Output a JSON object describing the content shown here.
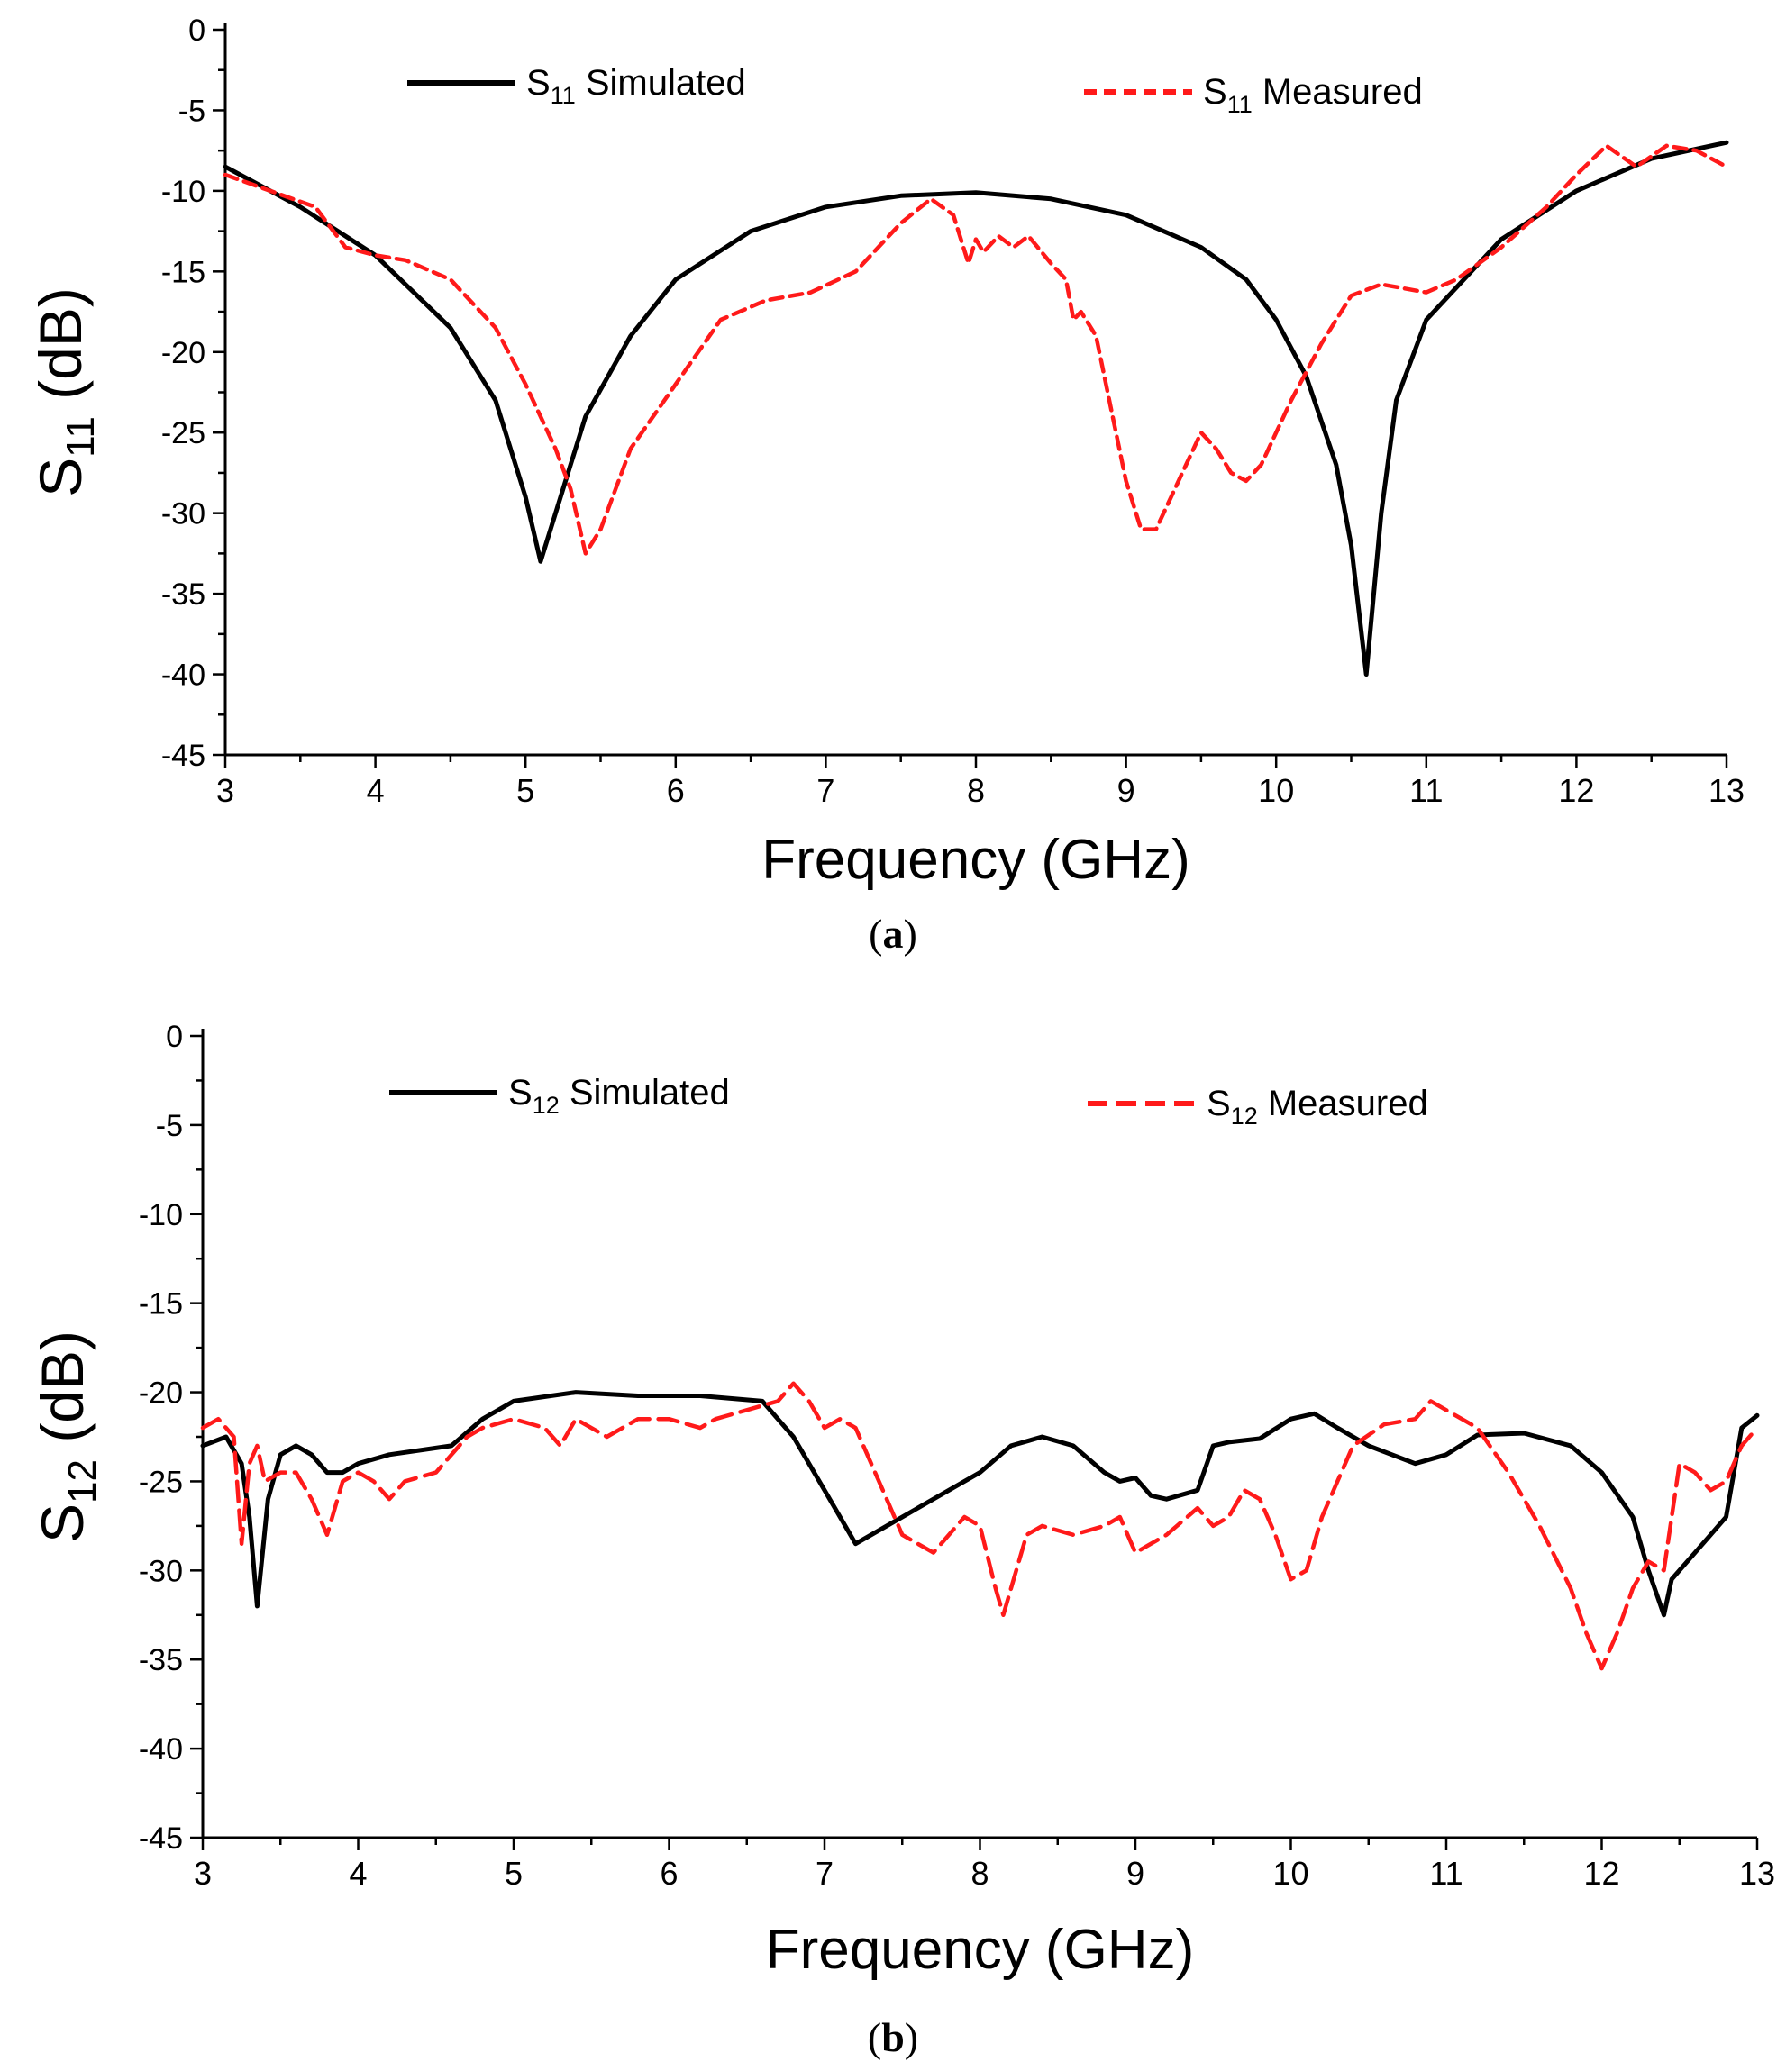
{
  "chart_data": [
    {
      "type": "line",
      "panel": "a",
      "caption_letter": "a",
      "xlabel": "Frequency (GHz)",
      "ylabel_base": "S",
      "ylabel_sub": "11",
      "ylabel_unit": " (dB)",
      "xlim": [
        3,
        13
      ],
      "ylim": [
        -45,
        0
      ],
      "xticks": [
        "3",
        "4",
        "5",
        "6",
        "7",
        "8",
        "9",
        "10",
        "11",
        "12",
        "13"
      ],
      "yticks": [
        "0",
        "-5",
        "-10",
        "-15",
        "-20",
        "-25",
        "-30",
        "-35",
        "-40",
        "-45"
      ],
      "legend": [
        {
          "base": "S",
          "sub": "11",
          "text": " Simulated",
          "color": "#000000",
          "dash": "solid"
        },
        {
          "base": "S",
          "sub": "11",
          "text": " Measured",
          "color": "#ff1a1a",
          "dash": "dashed"
        }
      ],
      "series": [
        {
          "name": "S11 Simulated",
          "color": "#000000",
          "x": [
            3,
            3.5,
            4,
            4.5,
            4.8,
            5.0,
            5.1,
            5.2,
            5.4,
            5.7,
            6.0,
            6.5,
            7.0,
            7.5,
            8.0,
            8.5,
            9.0,
            9.5,
            9.8,
            10.0,
            10.2,
            10.4,
            10.5,
            10.6,
            10.7,
            10.8,
            11.0,
            11.5,
            12.0,
            12.5,
            13.0
          ],
          "y": [
            -8.5,
            -11,
            -14,
            -18.5,
            -23,
            -29,
            -33,
            -30,
            -24,
            -19,
            -15.5,
            -12.5,
            -11,
            -10.3,
            -10.1,
            -10.5,
            -11.5,
            -13.5,
            -15.5,
            -18,
            -21.5,
            -27,
            -32,
            -40,
            -30,
            -23,
            -18,
            -13,
            -10,
            -8,
            -7
          ]
        },
        {
          "name": "S11 Measured",
          "color": "#ff1a1a",
          "x": [
            3,
            3.3,
            3.6,
            3.8,
            4.0,
            4.2,
            4.5,
            4.8,
            5.0,
            5.2,
            5.3,
            5.4,
            5.5,
            5.7,
            6.0,
            6.3,
            6.6,
            6.9,
            7.2,
            7.5,
            7.7,
            7.85,
            7.95,
            8.0,
            8.05,
            8.15,
            8.25,
            8.35,
            8.5,
            8.6,
            8.65,
            8.7,
            8.8,
            8.9,
            9.0,
            9.1,
            9.2,
            9.3,
            9.4,
            9.5,
            9.6,
            9.7,
            9.8,
            9.9,
            10.0,
            10.1,
            10.3,
            10.5,
            10.7,
            11.0,
            11.2,
            11.5,
            11.8,
            12.0,
            12.2,
            12.4,
            12.6,
            12.8,
            13.0
          ],
          "y": [
            -9,
            -10,
            -11,
            -13.5,
            -14,
            -14.3,
            -15.5,
            -18.5,
            -22,
            -26,
            -28.5,
            -32.5,
            -31,
            -26,
            -22,
            -18,
            -16.8,
            -16.3,
            -15,
            -12,
            -10.5,
            -11.5,
            -14.5,
            -13,
            -13.8,
            -12.8,
            -13.5,
            -12.8,
            -14.5,
            -15.5,
            -18,
            -17.5,
            -19,
            -23.5,
            -28,
            -31,
            -31,
            -29,
            -27,
            -25,
            -26,
            -27.5,
            -28,
            -27,
            -25,
            -23,
            -19.5,
            -16.5,
            -15.8,
            -16.3,
            -15.5,
            -13.5,
            -11,
            -9,
            -7.2,
            -8.5,
            -7.2,
            -7.5,
            -8.5
          ]
        }
      ]
    },
    {
      "type": "line",
      "panel": "b",
      "caption_letter": "b",
      "xlabel": "Frequency (GHz)",
      "ylabel_base": "S",
      "ylabel_sub": "12",
      "ylabel_unit": " (dB)",
      "xlim": [
        3,
        13
      ],
      "ylim": [
        -45,
        0
      ],
      "xticks": [
        "3",
        "4",
        "5",
        "6",
        "7",
        "8",
        "9",
        "10",
        "11",
        "12",
        "13"
      ],
      "yticks": [
        "0",
        "-5",
        "-10",
        "-15",
        "-20",
        "-25",
        "-30",
        "-35",
        "-40",
        "-45"
      ],
      "legend": [
        {
          "base": "S",
          "sub": "12",
          "text": " Simulated",
          "color": "#000000",
          "dash": "solid"
        },
        {
          "base": "S",
          "sub": "12",
          "text": " Measured",
          "color": "#ff1a1a",
          "dash": "dashed"
        }
      ],
      "series": [
        {
          "name": "S12 Simulated",
          "color": "#000000",
          "x": [
            3,
            3.15,
            3.25,
            3.3,
            3.35,
            3.42,
            3.5,
            3.6,
            3.7,
            3.8,
            3.9,
            4.0,
            4.2,
            4.6,
            4.8,
            5.0,
            5.4,
            5.8,
            6.2,
            6.6,
            6.8,
            7.0,
            7.2,
            7.4,
            7.6,
            7.8,
            8.0,
            8.2,
            8.4,
            8.6,
            8.8,
            8.9,
            9.0,
            9.1,
            9.2,
            9.4,
            9.5,
            9.6,
            9.8,
            10.0,
            10.15,
            10.3,
            10.5,
            10.8,
            11.0,
            11.2,
            11.5,
            11.8,
            12.0,
            12.2,
            12.3,
            12.4,
            12.45,
            12.6,
            12.8,
            12.9,
            13.0
          ],
          "y": [
            -23,
            -22.5,
            -24,
            -27,
            -32,
            -26,
            -23.5,
            -23,
            -23.5,
            -24.5,
            -24.5,
            -24,
            -23.5,
            -23,
            -21.5,
            -20.5,
            -20,
            -20.2,
            -20.2,
            -20.5,
            -22.5,
            -25.5,
            -28.5,
            -27.5,
            -26.5,
            -25.5,
            -24.5,
            -23,
            -22.5,
            -23,
            -24.5,
            -25,
            -24.8,
            -25.8,
            -26,
            -25.5,
            -23,
            -22.8,
            -22.6,
            -21.5,
            -21.2,
            -22,
            -23,
            -24,
            -23.5,
            -22.4,
            -22.3,
            -23,
            -24.5,
            -27,
            -30,
            -32.5,
            -30.5,
            -29,
            -27,
            -22,
            -21.3
          ]
        },
        {
          "name": "S12 Measured",
          "color": "#ff1a1a",
          "x": [
            3,
            3.1,
            3.2,
            3.25,
            3.3,
            3.35,
            3.4,
            3.5,
            3.6,
            3.7,
            3.8,
            3.9,
            4.0,
            4.1,
            4.2,
            4.3,
            4.5,
            4.7,
            4.8,
            5.0,
            5.2,
            5.3,
            5.4,
            5.6,
            5.8,
            6.0,
            6.2,
            6.3,
            6.5,
            6.7,
            6.8,
            6.9,
            7.0,
            7.1,
            7.2,
            7.3,
            7.5,
            7.7,
            7.9,
            8.0,
            8.1,
            8.15,
            8.2,
            8.3,
            8.4,
            8.6,
            8.8,
            8.9,
            9.0,
            9.2,
            9.4,
            9.5,
            9.6,
            9.7,
            9.8,
            9.9,
            10.0,
            10.1,
            10.2,
            10.4,
            10.6,
            10.8,
            10.9,
            11.0,
            11.2,
            11.4,
            11.6,
            11.8,
            11.9,
            12.0,
            12.1,
            12.2,
            12.3,
            12.4,
            12.5,
            12.6,
            12.7,
            12.8,
            12.9,
            13.0
          ],
          "y": [
            -22,
            -21.5,
            -22.5,
            -28.5,
            -24,
            -23,
            -25,
            -24.5,
            -24.5,
            -26,
            -28,
            -25,
            -24.5,
            -25,
            -26,
            -25,
            -24.5,
            -22.5,
            -22,
            -21.5,
            -22,
            -23,
            -21.5,
            -22.5,
            -21.5,
            -21.5,
            -22,
            -21.5,
            -21,
            -20.5,
            -19.5,
            -20.5,
            -22,
            -21.5,
            -22,
            -24,
            -28,
            -29,
            -27,
            -27.5,
            -31,
            -32.5,
            -31,
            -28,
            -27.5,
            -28,
            -27.5,
            -27,
            -29,
            -28,
            -26.5,
            -27.5,
            -27,
            -25.5,
            -26,
            -28,
            -30.5,
            -30,
            -27,
            -23,
            -21.8,
            -21.5,
            -20.5,
            -21,
            -22,
            -24.5,
            -27.5,
            -31,
            -33.5,
            -35.5,
            -33.5,
            -31,
            -29.5,
            -30,
            -24,
            -24.5,
            -25.5,
            -25,
            -23,
            -22
          ]
        }
      ]
    }
  ]
}
